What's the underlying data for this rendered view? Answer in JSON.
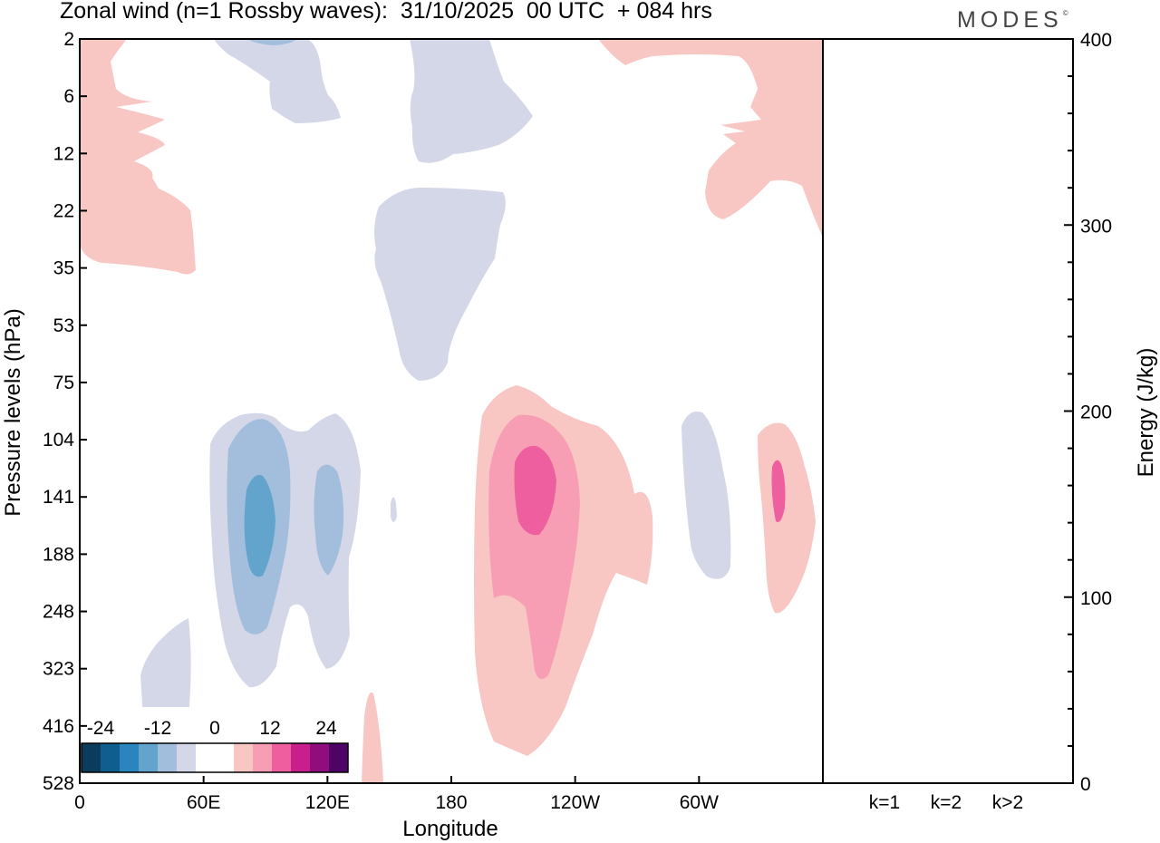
{
  "header": {
    "title": "Zonal wind (n=1 Rossby waves):  31/10/2025  00 UTC  + 084 hrs",
    "brand": "MODES",
    "brand_mark": "©"
  },
  "chart_data": [
    {
      "type": "contour",
      "title": "Zonal wind (n=1 Rossby waves)",
      "xlabel": "Longitude",
      "ylabel": "Pressure levels (hPa)",
      "x_ticks": [
        {
          "lon": 0,
          "label": "0"
        },
        {
          "lon": 60,
          "label": "60E"
        },
        {
          "lon": 120,
          "label": "120E"
        },
        {
          "lon": 180,
          "label": "180"
        },
        {
          "lon": 240,
          "label": "120W"
        },
        {
          "lon": 300,
          "label": "60W"
        }
      ],
      "xlim": [
        0,
        360
      ],
      "y_levels": [
        "2",
        "6",
        "12",
        "22",
        "35",
        "53",
        "75",
        "104",
        "141",
        "188",
        "248",
        "323",
        "416",
        "528"
      ],
      "colorbar": {
        "labels": [
          "-24",
          "-12",
          "0",
          "12",
          "24"
        ],
        "colors": [
          "#0b3c5d",
          "#0f5e8f",
          "#2a84bd",
          "#63a4cd",
          "#a3bedc",
          "#d4d7e8",
          "#ffffff",
          "#ffffff",
          "#f9c7c3",
          "#f79eb4",
          "#ee5fa0",
          "#c81f8c",
          "#8f0d7c",
          "#4d0466"
        ]
      }
    },
    {
      "type": "bar",
      "ylabel": "Energy (J/kg)",
      "ylim": [
        0,
        400
      ],
      "y_ticks": [
        "0",
        "100",
        "200",
        "300",
        "400"
      ],
      "categories": [
        "k=1",
        "k=2",
        "k>2"
      ],
      "values": [
        0.3,
        0.3,
        0.3
      ]
    }
  ]
}
